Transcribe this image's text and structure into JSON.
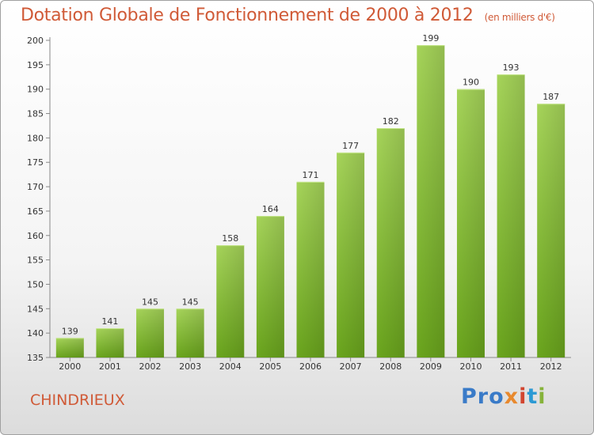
{
  "header": {
    "title": "Dotation Globale de Fonctionnement de 2000 à 2012",
    "subtitle": "(en milliers d'€)"
  },
  "footer": {
    "commune": "CHINDRIEUX",
    "logo": [
      "Pro",
      "x",
      "i",
      "t",
      "i"
    ]
  },
  "colors": {
    "accent": "#d05a37",
    "bar_top": "#a6d45a",
    "bar_bottom": "#6aa51d"
  },
  "chart_data": {
    "type": "bar",
    "categories": [
      "2000",
      "2001",
      "2002",
      "2003",
      "2004",
      "2005",
      "2006",
      "2007",
      "2008",
      "2009",
      "2010",
      "2011",
      "2012"
    ],
    "values": [
      139,
      141,
      145,
      145,
      158,
      164,
      171,
      177,
      182,
      199,
      190,
      193,
      187
    ],
    "title": "Dotation Globale de Fonctionnement de 2000 à 2012",
    "xlabel": "",
    "ylabel": "",
    "ylim": [
      135,
      200
    ],
    "yticks": [
      135,
      140,
      145,
      150,
      155,
      160,
      165,
      170,
      175,
      180,
      185,
      190,
      195,
      200
    ],
    "grid": false,
    "data_labels": true
  }
}
